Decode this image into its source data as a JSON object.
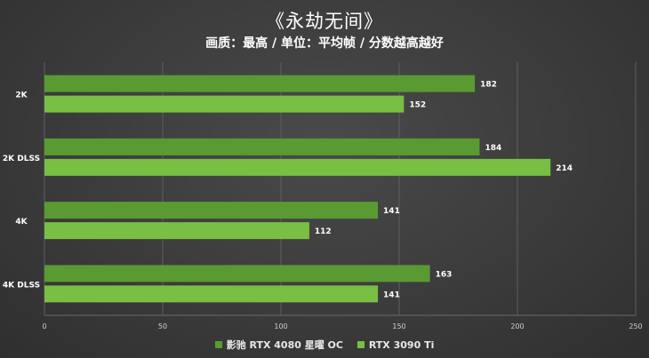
{
  "chart_data": {
    "type": "bar",
    "orientation": "horizontal",
    "title": "《永劫无间》",
    "subtitle": "画质：最高 / 单位：平均帧 / 分数越高越好",
    "categories": [
      "2K",
      "2K DLSS",
      "4K",
      "4K DLSS"
    ],
    "series": [
      {
        "name": "影驰 RTX 4080 星曜 OC",
        "color": "#5a9a32",
        "values": [
          182,
          184,
          141,
          163
        ]
      },
      {
        "name": "RTX 3090 Ti",
        "color": "#78bf44",
        "values": [
          152,
          214,
          112,
          141
        ]
      }
    ],
    "xlim": [
      0,
      250
    ],
    "xticks": [
      "0",
      "50",
      "100",
      "150",
      "200",
      "250"
    ],
    "grid": true,
    "legend_position": "bottom"
  }
}
